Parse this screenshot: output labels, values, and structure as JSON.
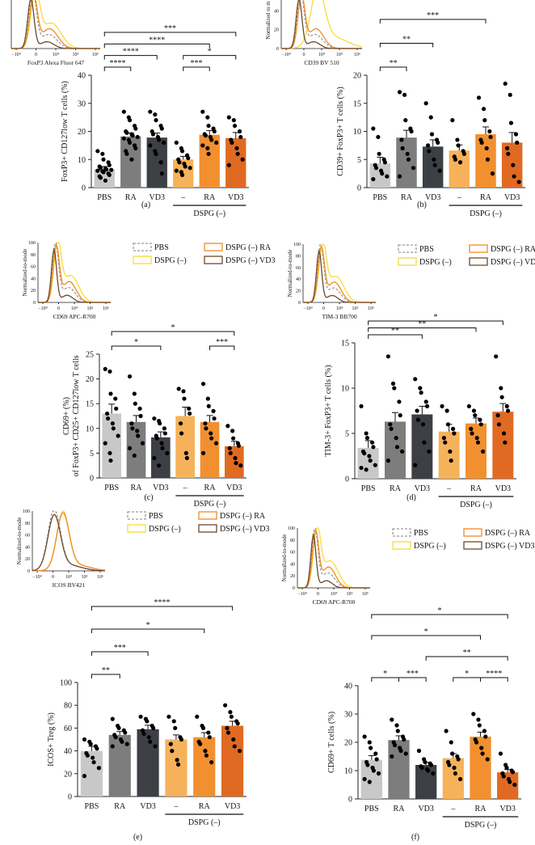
{
  "colors": {
    "pbs": "#c8c8c8",
    "ra": "#7d7d7d",
    "vd3": "#3c3f44",
    "dspg": "#f6b25a",
    "dspg_ra": "#f2902f",
    "dspg_vd3": "#e06a22",
    "hist_pbs": "#9a9a9a",
    "hist_dspg": "#f7dc3a",
    "hist_ra": "#f08a24",
    "hist_vd3": "#6b4a2b"
  },
  "legend_labels": {
    "pbs": "PBS",
    "dspg": "DSPG (–)",
    "dspg_ra": "DSPG (–) RA",
    "dspg_vd3": "DSPG (–) VD3"
  },
  "categories": [
    "PBS",
    "RA",
    "VD3",
    "–",
    "RA",
    "VD3"
  ],
  "group_label": "DSPG (–)",
  "panels": [
    {
      "id": "a",
      "label": "(a)",
      "hist": {
        "xlabel": "FoxP3 Alexa Fluor 647",
        "ylabel": "Normalized",
        "show_legend": false,
        "xticks": [
          "−10⁴",
          "0",
          "10⁴",
          "10⁵",
          "10⁶"
        ],
        "yticks": []
      },
      "chart_data": {
        "type": "bar",
        "ylabel": "FoxP3+ CD127low T cells (%)",
        "ylim": [
          0,
          40
        ],
        "yticks": [
          0,
          10,
          20,
          30,
          40
        ],
        "categories": [
          "PBS",
          "RA",
          "VD3",
          "–",
          "RA",
          "VD3"
        ],
        "values": [
          6.5,
          18.2,
          17.8,
          10.0,
          18.8,
          17.6
        ],
        "errors": [
          1.0,
          1.2,
          1.6,
          1.1,
          1.5,
          2.0
        ],
        "points": [
          [
            13,
            12,
            10,
            9,
            8,
            7.5,
            7,
            6.8,
            6.5,
            6.3,
            6,
            5.8,
            5.5,
            5,
            4.5,
            4,
            3.5,
            2.5
          ],
          [
            27,
            25,
            24,
            22,
            21,
            20,
            19.5,
            19,
            18.5,
            18,
            17.5,
            17,
            16,
            15,
            14,
            13,
            12,
            10
          ],
          [
            27,
            26,
            24,
            22,
            21,
            20,
            19,
            18,
            17,
            16,
            15,
            13,
            12,
            9,
            5
          ],
          [
            16,
            14,
            13,
            11.5,
            10.5,
            10,
            9,
            8.5,
            7.5,
            7,
            6,
            5.5,
            4.5
          ],
          [
            27,
            25,
            22,
            21,
            20,
            19,
            18.5,
            18,
            17,
            16,
            15,
            14,
            12
          ],
          [
            25,
            24,
            22,
            20,
            18,
            17,
            16,
            14,
            12,
            10,
            8
          ]
        ],
        "sig": [
          {
            "a": 0,
            "b": 1,
            "label": "****",
            "level": 0
          },
          {
            "a": 0,
            "b": 2,
            "label": "****",
            "level": 1
          },
          {
            "a": 3,
            "b": 4,
            "label": "***",
            "level": 0
          },
          {
            "a": 3,
            "b": 5,
            "label": "*",
            "level": 1
          },
          {
            "a": 0,
            "b": 4,
            "label": "****",
            "level": 2
          },
          {
            "a": 0,
            "b": 5,
            "label": "***",
            "level": 3
          }
        ]
      }
    },
    {
      "id": "b",
      "label": "(b)",
      "hist": {
        "xlabel": "CD39 BV 510",
        "ylabel": "Normalized to m",
        "show_legend": false,
        "xticks": [
          "−10⁴",
          "0",
          "10⁴",
          "10⁵",
          "10⁶"
        ],
        "yticks": [
          "0",
          "20",
          "40",
          "60"
        ]
      },
      "chart_data": {
        "type": "bar",
        "ylabel": "CD39+ FoxP3+ T cells (%)",
        "ylim": [
          0,
          20
        ],
        "yticks": [
          0,
          5,
          10,
          15,
          20
        ],
        "categories": [
          "PBS",
          "RA",
          "VD3",
          "–",
          "RA",
          "VD3"
        ],
        "values": [
          4.3,
          8.9,
          7.3,
          6.6,
          9.5,
          8.0
        ],
        "errors": [
          1.1,
          1.3,
          1.2,
          1.0,
          1.3,
          1.8
        ],
        "points": [
          [
            10.5,
            9,
            6,
            5,
            4.5,
            4,
            3.5,
            3,
            2.5,
            2,
            1.5
          ],
          [
            17,
            16.5,
            12,
            10.5,
            10,
            8.5,
            7,
            6,
            5,
            3.5,
            2
          ],
          [
            15,
            12.5,
            9.5,
            8.5,
            8,
            7.5,
            6.5,
            5,
            4,
            3
          ],
          [
            12,
            8.5,
            7.5,
            6.5,
            6,
            5.5,
            5,
            4.5
          ],
          [
            16,
            14,
            12,
            10,
            9,
            8.5,
            8,
            7,
            5,
            2.5
          ],
          [
            18.5,
            16.5,
            11.5,
            9.5,
            8,
            7,
            6,
            4,
            2,
            1
          ]
        ],
        "sig": [
          {
            "a": 0,
            "b": 1,
            "label": "**",
            "level": 0
          },
          {
            "a": 0,
            "b": 2,
            "label": "**",
            "level": 1
          },
          {
            "a": 0,
            "b": 4,
            "label": "***",
            "level": 2
          }
        ]
      }
    },
    {
      "id": "c",
      "label": "(c)",
      "hist": {
        "xlabel": "CD69 APC-R700",
        "ylabel": "Normalized-to-mode",
        "show_legend": true,
        "xticks": [
          "−10⁴",
          "0",
          "10⁴",
          "10⁵",
          "10⁶"
        ],
        "yticks": [
          "0",
          "20",
          "40",
          "60",
          "80",
          "100"
        ]
      },
      "chart_data": {
        "type": "bar",
        "ylabel": "CD69+ (%)",
        "ylabel2": "of FoxP3+ CD25+ CD127low T cells",
        "ylim": [
          0,
          25
        ],
        "yticks": [
          0,
          5,
          10,
          15,
          20,
          25
        ],
        "categories": [
          "PBS",
          "RA",
          "VD3",
          "–",
          "RA",
          "VD3"
        ],
        "values": [
          13.0,
          11.3,
          8.2,
          12.5,
          11.3,
          6.4
        ],
        "errors": [
          1.9,
          1.3,
          1.1,
          1.8,
          1.3,
          1.0
        ],
        "points": [
          [
            22,
            21.5,
            17,
            16,
            14,
            13,
            12,
            11,
            10,
            8.5,
            7,
            5,
            3.5
          ],
          [
            20.5,
            17,
            15,
            14,
            12.5,
            11,
            10,
            9.5,
            8.5,
            7,
            6,
            4.5
          ],
          [
            12,
            11.5,
            11,
            10,
            9,
            8.5,
            8,
            7,
            6,
            5,
            4,
            2.5
          ],
          [
            18,
            17.5,
            16,
            14,
            13,
            11,
            9,
            5,
            4
          ],
          [
            19,
            16,
            14.5,
            13.5,
            12,
            11,
            10,
            9,
            8,
            7,
            5
          ],
          [
            10.5,
            9.5,
            8,
            7,
            6.5,
            6,
            5,
            4,
            3,
            2.5
          ]
        ],
        "sig": [
          {
            "a": 0,
            "b": 2,
            "label": "*",
            "level": 0
          },
          {
            "a": 4,
            "b": 5,
            "label": "***",
            "level": 0
          },
          {
            "a": 0,
            "b": 5,
            "label": "*",
            "level": 1
          }
        ]
      }
    },
    {
      "id": "d",
      "label": "(d)",
      "hist": {
        "xlabel": "TIM-3 BB700",
        "ylabel": "Normalized-to-mode",
        "show_legend": true,
        "xticks": [
          "−10⁴",
          "0",
          "10⁴",
          "10⁵",
          "10⁶"
        ],
        "yticks": [
          "0",
          "20",
          "40",
          "60",
          "80",
          "100"
        ]
      },
      "chart_data": {
        "type": "bar",
        "ylabel": "TIM-3+ FoxP3+ T cells (%)",
        "ylim": [
          0,
          15
        ],
        "yticks": [
          0,
          5,
          10,
          15
        ],
        "categories": [
          "PBS",
          "RA",
          "VD3",
          "–",
          "RA",
          "VD3"
        ],
        "values": [
          3.4,
          6.3,
          7.1,
          5.2,
          6.1,
          7.4
        ],
        "errors": [
          0.8,
          1.0,
          0.9,
          0.8,
          0.6,
          0.9
        ],
        "points": [
          [
            8,
            5,
            4.5,
            4,
            3.5,
            3,
            2.8,
            2.5,
            2,
            1.5,
            1.2,
            1
          ],
          [
            13.5,
            10.5,
            10,
            8.5,
            7,
            6,
            5.5,
            4.5,
            3.5,
            3,
            2
          ],
          [
            11,
            10,
            9.5,
            8.5,
            8,
            7.5,
            6.5,
            6,
            4,
            3,
            1.5
          ],
          [
            8,
            7.5,
            6,
            5.5,
            5,
            4.5,
            4,
            3,
            2
          ],
          [
            8,
            7.5,
            7,
            6.5,
            6,
            5.5,
            5,
            4.5,
            4,
            3
          ],
          [
            13.5,
            10,
            9,
            8,
            7.5,
            7,
            6,
            5,
            4
          ]
        ],
        "sig": [
          {
            "a": 0,
            "b": 2,
            "label": "**",
            "level": 0
          },
          {
            "a": 0,
            "b": 4,
            "label": "**",
            "level": 1
          },
          {
            "a": 0,
            "b": 5,
            "label": "*",
            "level": 2
          }
        ]
      }
    },
    {
      "id": "e",
      "label": "(e)",
      "hist": {
        "xlabel": "ICOS BV421",
        "ylabel": "Normalized-to-mode",
        "show_legend": true,
        "xticks": [
          "−10⁴",
          "0",
          "10⁴",
          "10⁵",
          "10⁶"
        ],
        "yticks": [
          "0",
          "20",
          "40",
          "60",
          "80",
          "100"
        ]
      },
      "chart_data": {
        "type": "bar",
        "ylabel": "ICOS+ Treg (%)",
        "ylim": [
          0,
          100
        ],
        "yticks": [
          0,
          20,
          40,
          60,
          80,
          100
        ],
        "categories": [
          "PBS",
          "RA",
          "VD3",
          "–",
          "RA",
          "VD3"
        ],
        "values": [
          40,
          54,
          59,
          50,
          52,
          62
        ],
        "errors": [
          4,
          3,
          3.5,
          4,
          4,
          4
        ],
        "points": [
          [
            50,
            48,
            46,
            44,
            42,
            38,
            36,
            34,
            30,
            25,
            18
          ],
          [
            68,
            62,
            60,
            58,
            56,
            54,
            52,
            50,
            48,
            46,
            44
          ],
          [
            70,
            68,
            66,
            62,
            60,
            58,
            55,
            52,
            48,
            44
          ],
          [
            70,
            66,
            60,
            52,
            50,
            46,
            40,
            32,
            28
          ],
          [
            70,
            62,
            60,
            56,
            52,
            48,
            46,
            40,
            36,
            30
          ],
          [
            80,
            74,
            70,
            66,
            64,
            60,
            56,
            50,
            44,
            40
          ]
        ],
        "sig": [
          {
            "a": 0,
            "b": 1,
            "label": "**",
            "level": 0
          },
          {
            "a": 0,
            "b": 2,
            "label": "***",
            "level": 1
          },
          {
            "a": 0,
            "b": 4,
            "label": "*",
            "level": 2
          },
          {
            "a": 0,
            "b": 5,
            "label": "****",
            "level": 3
          }
        ]
      }
    },
    {
      "id": "f",
      "label": "(f)",
      "hist": {
        "xlabel": "CD69 APC-R700",
        "ylabel": "Normalized-to-mode",
        "show_legend": true,
        "xticks": [
          "−10⁴",
          "0",
          "10⁴",
          "10⁵",
          "10⁶"
        ],
        "yticks": [
          "0",
          "20",
          "40",
          "60",
          "80",
          "100"
        ]
      },
      "chart_data": {
        "type": "bar",
        "ylabel": "CD69+ T cells (%)",
        "ylim": [
          0,
          40
        ],
        "yticks": [
          0,
          10,
          20,
          30,
          40
        ],
        "categories": [
          "PBS",
          "RA",
          "VD3",
          "–",
          "RA",
          "VD3"
        ],
        "values": [
          13.8,
          20.8,
          12.0,
          14.4,
          22.0,
          9.4
        ],
        "errors": [
          1.5,
          1.5,
          0.9,
          1.6,
          1.6,
          1.0
        ],
        "points": [
          [
            22,
            20,
            18,
            16,
            14,
            13,
            12,
            11,
            10,
            9,
            7,
            6
          ],
          [
            28,
            26,
            24,
            22,
            21,
            20,
            19,
            18,
            17,
            16,
            15
          ],
          [
            17,
            14,
            13,
            12.5,
            12,
            11.5,
            11,
            10.5,
            10,
            9
          ],
          [
            24,
            20,
            16,
            15,
            14,
            13,
            12,
            11,
            9,
            7
          ],
          [
            30,
            28,
            26,
            24,
            22,
            21,
            20,
            18,
            16,
            14
          ],
          [
            16,
            12,
            11,
            10,
            9.5,
            9,
            8,
            7,
            6,
            5
          ]
        ],
        "sig": [
          {
            "a": 0,
            "b": 1,
            "label": "*",
            "level": 0
          },
          {
            "a": 1,
            "b": 2,
            "label": "***",
            "level": 0
          },
          {
            "a": 3,
            "b": 4,
            "label": "*",
            "level": 0
          },
          {
            "a": 4,
            "b": 5,
            "label": "****",
            "level": 0
          },
          {
            "a": 2,
            "b": 5,
            "label": "**",
            "level": 1
          },
          {
            "a": 0,
            "b": 4,
            "label": "*",
            "level": 2
          },
          {
            "a": 0,
            "b": 5,
            "label": "*",
            "level": 3
          }
        ]
      }
    }
  ]
}
